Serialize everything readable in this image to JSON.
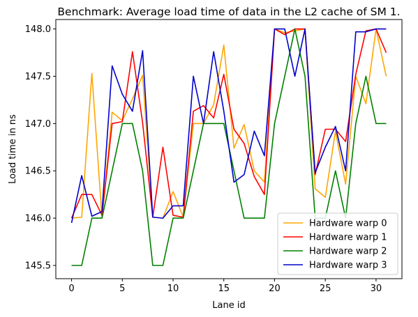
{
  "chart_data": {
    "type": "line",
    "title": "Benchmark: Average load time of data in the L2 cache of SM 1.",
    "xlabel": "Lane id",
    "ylabel": "Load time in ns",
    "xlim": [
      -1.55,
      32.55
    ],
    "ylim": [
      145.36,
      148.1
    ],
    "xticks": [
      0,
      5,
      10,
      15,
      20,
      25,
      30
    ],
    "yticks": [
      145.5,
      146.0,
      146.5,
      147.0,
      147.5,
      148.0
    ],
    "ytick_labels": [
      "145.5",
      "146.0",
      "146.5",
      "147.0",
      "147.5",
      "148.0"
    ],
    "grid": false,
    "legend_position": "lower-right",
    "x": [
      0,
      1,
      2,
      3,
      4,
      5,
      6,
      7,
      8,
      9,
      10,
      11,
      12,
      13,
      14,
      15,
      16,
      17,
      18,
      19,
      20,
      21,
      22,
      23,
      24,
      25,
      26,
      27,
      28,
      29,
      30,
      31
    ],
    "series": [
      {
        "name": "Hardware warp 0",
        "color": "#FFA500",
        "values": [
          146.0,
          146.01,
          147.53,
          146.0,
          147.12,
          147.03,
          147.26,
          147.51,
          146.01,
          146.0,
          146.28,
          146.01,
          147.0,
          147.0,
          147.2,
          147.83,
          146.74,
          146.99,
          146.5,
          146.38,
          148.0,
          147.96,
          147.98,
          148.0,
          146.31,
          146.22,
          146.92,
          146.36,
          147.5,
          147.21,
          148.0,
          147.5
        ]
      },
      {
        "name": "Hardware warp 1",
        "color": "#FF0000",
        "values": [
          146.0,
          146.25,
          146.25,
          146.03,
          147.0,
          147.02,
          147.76,
          147.01,
          146.01,
          146.75,
          146.03,
          146.01,
          147.13,
          147.19,
          147.06,
          147.52,
          146.94,
          146.79,
          146.44,
          146.25,
          148.0,
          147.94,
          148.0,
          148.0,
          146.46,
          146.94,
          146.94,
          146.81,
          147.52,
          147.98,
          148.0,
          147.75
        ]
      },
      {
        "name": "Hardware warp 2",
        "color": "#008000",
        "values": [
          145.5,
          145.5,
          146.0,
          146.0,
          146.5,
          147.0,
          147.0,
          146.5,
          145.5,
          145.5,
          146.0,
          146.0,
          146.5,
          147.0,
          147.0,
          147.0,
          146.5,
          146.0,
          146.0,
          146.0,
          147.0,
          147.5,
          148.0,
          147.5,
          146.0,
          146.0,
          146.5,
          146.0,
          147.0,
          147.5,
          147.0,
          147.0
        ]
      },
      {
        "name": "Hardware warp 3",
        "color": "#0000CD",
        "values": [
          145.95,
          146.45,
          146.02,
          146.07,
          147.61,
          147.31,
          147.13,
          147.77,
          146.01,
          146.0,
          146.13,
          146.13,
          147.5,
          147.0,
          147.76,
          147.13,
          146.38,
          146.46,
          146.92,
          146.66,
          148.0,
          148.0,
          147.5,
          148.0,
          146.48,
          146.75,
          146.97,
          146.5,
          147.97,
          147.97,
          148.0,
          148.0
        ]
      }
    ]
  }
}
